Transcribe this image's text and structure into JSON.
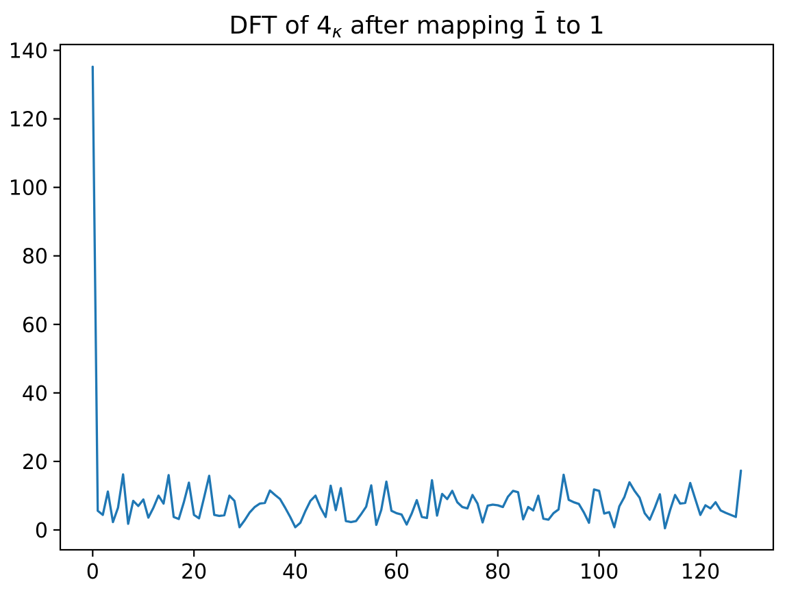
{
  "figure": {
    "background": "#ffffff"
  },
  "chart_data": {
    "type": "line",
    "title": "DFT of 4κ after mapping 1̄ to 1",
    "title_parts": {
      "prefix": "DFT of 4",
      "subscript": "κ",
      "suffix": " after mapping 1̄ to 1"
    },
    "xlabel": "",
    "ylabel": "",
    "x_start": 0,
    "x_step": 1,
    "values": [
      135.2,
      5.6,
      4.4,
      11.2,
      2.3,
      6.5,
      16.2,
      1.8,
      8.5,
      7.0,
      8.9,
      3.6,
      6.5,
      10.0,
      7.7,
      16.0,
      3.8,
      3.2,
      8.1,
      13.8,
      4.4,
      3.4,
      9.5,
      15.8,
      4.4,
      4.1,
      4.3,
      10.0,
      8.5,
      0.8,
      2.8,
      5.1,
      6.7,
      7.7,
      7.9,
      11.5,
      10.2,
      9.0,
      6.5,
      3.8,
      0.8,
      2.1,
      5.5,
      8.5,
      10.0,
      6.5,
      3.8,
      12.9,
      5.8,
      12.2,
      2.6,
      2.3,
      2.6,
      4.6,
      6.8,
      13.0,
      1.5,
      5.9,
      14.1,
      5.6,
      4.9,
      4.5,
      1.6,
      4.8,
      8.7,
      3.8,
      3.5,
      14.5,
      4.2,
      10.5,
      9.0,
      11.4,
      8.1,
      6.7,
      6.3,
      10.2,
      7.7,
      2.2,
      7.1,
      7.4,
      7.2,
      6.7,
      9.7,
      11.4,
      11.0,
      3.1,
      6.7,
      5.7,
      10.0,
      3.3,
      3.0,
      4.9,
      6.0,
      16.1,
      8.8,
      8.1,
      7.6,
      5.1,
      2.1,
      11.8,
      11.4,
      4.8,
      5.2,
      0.8,
      6.9,
      9.6,
      13.9,
      11.4,
      9.4,
      4.9,
      3.0,
      6.5,
      10.4,
      0.5,
      5.7,
      10.2,
      7.7,
      7.9,
      13.7,
      9.0,
      4.4,
      7.2,
      6.3,
      8.1,
      5.7,
      5.0,
      4.4,
      3.8,
      17.3
    ],
    "xlim": [
      -6.4,
      134.4
    ],
    "ylim": [
      -5.8,
      141.7
    ],
    "xtick_labels": [
      "0",
      "20",
      "40",
      "60",
      "80",
      "100",
      "120"
    ],
    "xtick_values": [
      0,
      20,
      40,
      60,
      80,
      100,
      120
    ],
    "ytick_labels": [
      "0",
      "20",
      "40",
      "60",
      "80",
      "100",
      "120",
      "140"
    ],
    "ytick_values": [
      0,
      20,
      40,
      60,
      80,
      100,
      120,
      140
    ],
    "grid": false,
    "legend": null,
    "line_color": "#1f77b4",
    "axis_color": "#000000",
    "tick_label_color": "#000000",
    "background": "#ffffff"
  }
}
